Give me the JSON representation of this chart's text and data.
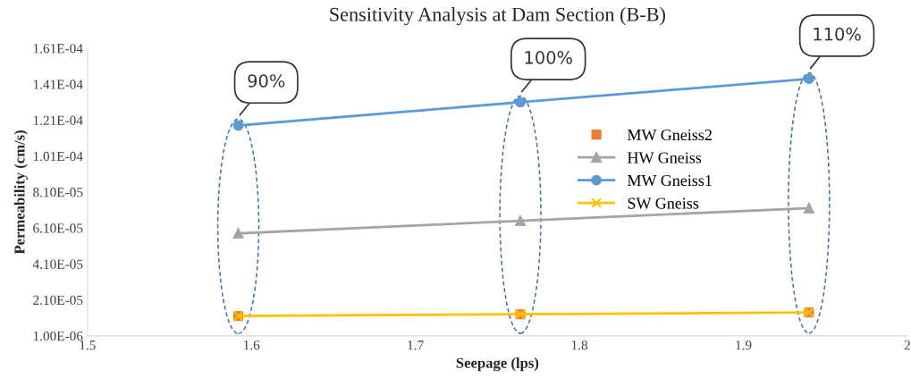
{
  "chart_data": {
    "type": "line",
    "title": "Sensitivity Analysis at Dam Section (B-B)",
    "xlabel": "Seepage (lps)",
    "ylabel": "Permeability (cm/s)",
    "x": [
      1.592,
      1.764,
      1.94
    ],
    "series": [
      {
        "name": "MW Gneiss2",
        "type": "scatter",
        "color": "#ed7d31",
        "marker": "square",
        "values": [
          1.2e-05,
          1.3e-05,
          1.4e-05
        ]
      },
      {
        "name": "HW Gneiss",
        "color": "#a5a5a5",
        "marker": "triangle",
        "values": [
          5.8e-05,
          6.5e-05,
          7.2e-05
        ]
      },
      {
        "name": "MW Gneiss1",
        "color": "#5b9bd5",
        "marker": "circle",
        "values": [
          0.000118,
          0.000131,
          0.000144
        ]
      },
      {
        "name": "SW Gneiss",
        "color": "#ffc000",
        "marker": "cross",
        "values": [
          1.2e-05,
          1.3e-05,
          1.4e-05
        ]
      }
    ],
    "annotations": [
      "90%",
      "100%",
      "110%"
    ],
    "xlim": [
      1.5,
      2
    ],
    "xticks": [
      1.5,
      1.6,
      1.7,
      1.8,
      1.9,
      2
    ],
    "ylim": [
      1e-06,
      0.000161
    ],
    "yticks": [
      {
        "value": 1e-06,
        "label": "1.00E-06"
      },
      {
        "value": 2.1e-05,
        "label": "2.10E-05"
      },
      {
        "value": 4.1e-05,
        "label": "4.10E-05"
      },
      {
        "value": 6.1e-05,
        "label": "6.10E-05"
      },
      {
        "value": 8.1e-05,
        "label": "8.10E-05"
      },
      {
        "value": 0.000101,
        "label": "1.01E-04"
      },
      {
        "value": 0.000121,
        "label": "1.21E-04"
      },
      {
        "value": 0.000141,
        "label": "1.41E-04"
      },
      {
        "value": 0.000161,
        "label": "1.61E-04"
      }
    ],
    "grid": false,
    "legend": "top right",
    "line_style": "solid"
  }
}
